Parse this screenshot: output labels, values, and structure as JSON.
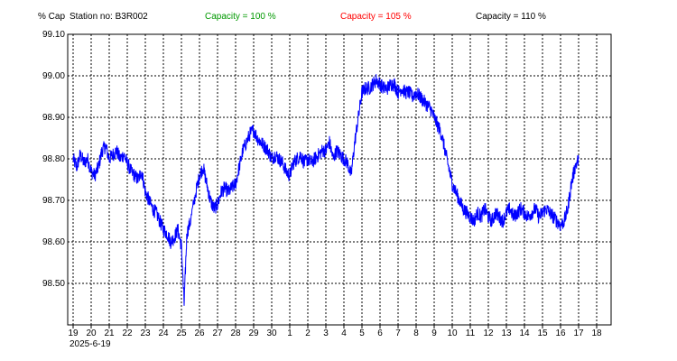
{
  "header": {
    "ylabel": "% Cap",
    "station": "Station no: B3R002",
    "legend": [
      {
        "label": "Capacity = 100 %",
        "color": "#009900"
      },
      {
        "label": "Capacity = 105 %",
        "color": "#ff0000"
      },
      {
        "label": "Capacity = 110 %",
        "color": "#000000"
      }
    ]
  },
  "chart_data": {
    "type": "line",
    "title": "",
    "ylabel": "% Cap",
    "xlabel": "",
    "ylim": [
      98.4,
      99.1
    ],
    "yticks": [
      "99.10",
      "99.00",
      "98.90",
      "98.80",
      "98.70",
      "98.60",
      "98.50"
    ],
    "ytick_values": [
      99.1,
      99.0,
      98.9,
      98.8,
      98.7,
      98.6,
      98.5
    ],
    "xticks": [
      "19",
      "20",
      "21",
      "22",
      "23",
      "24",
      "25",
      "26",
      "27",
      "28",
      "29",
      "30",
      "1",
      "2",
      "3",
      "4",
      "5",
      "6",
      "7",
      "8",
      "9",
      "10",
      "11",
      "12",
      "13",
      "14",
      "15",
      "16",
      "17",
      "18"
    ],
    "start_date": "2025-6-19",
    "grid": true,
    "line_color": "#0000ff",
    "series": [
      {
        "values": [
          [
            0,
            98.8
          ],
          [
            0.2,
            98.78
          ],
          [
            0.4,
            98.81
          ],
          [
            0.6,
            98.79
          ],
          [
            0.8,
            98.8
          ],
          [
            1.0,
            98.77
          ],
          [
            1.2,
            98.76
          ],
          [
            1.4,
            98.78
          ],
          [
            1.6,
            98.82
          ],
          [
            1.8,
            98.83
          ],
          [
            2.0,
            98.8
          ],
          [
            2.2,
            98.81
          ],
          [
            2.4,
            98.82
          ],
          [
            2.6,
            98.8
          ],
          [
            2.8,
            98.81
          ],
          [
            3.0,
            98.79
          ],
          [
            3.2,
            98.77
          ],
          [
            3.4,
            98.76
          ],
          [
            3.6,
            98.75
          ],
          [
            3.8,
            98.77
          ],
          [
            4.0,
            98.72
          ],
          [
            4.2,
            98.7
          ],
          [
            4.4,
            98.68
          ],
          [
            4.6,
            98.67
          ],
          [
            4.8,
            98.65
          ],
          [
            5.0,
            98.63
          ],
          [
            5.2,
            98.62
          ],
          [
            5.4,
            98.6
          ],
          [
            5.6,
            98.61
          ],
          [
            5.8,
            98.63
          ],
          [
            6.0,
            98.59
          ],
          [
            6.15,
            98.45
          ],
          [
            6.3,
            98.62
          ],
          [
            6.5,
            98.65
          ],
          [
            6.8,
            98.72
          ],
          [
            7.0,
            98.76
          ],
          [
            7.2,
            98.78
          ],
          [
            7.4,
            98.74
          ],
          [
            7.6,
            98.7
          ],
          [
            7.8,
            98.68
          ],
          [
            8.0,
            98.69
          ],
          [
            8.2,
            98.72
          ],
          [
            8.4,
            98.73
          ],
          [
            8.6,
            98.72
          ],
          [
            8.8,
            98.73
          ],
          [
            9.0,
            98.74
          ],
          [
            9.2,
            98.78
          ],
          [
            9.4,
            98.82
          ],
          [
            9.6,
            98.84
          ],
          [
            9.8,
            98.86
          ],
          [
            10.0,
            98.87
          ],
          [
            10.2,
            98.85
          ],
          [
            10.4,
            98.84
          ],
          [
            10.6,
            98.83
          ],
          [
            10.8,
            98.82
          ],
          [
            11.0,
            98.8
          ],
          [
            11.2,
            98.81
          ],
          [
            11.4,
            98.8
          ],
          [
            11.6,
            98.79
          ],
          [
            11.8,
            98.77
          ],
          [
            12.0,
            98.76
          ],
          [
            12.2,
            98.79
          ],
          [
            12.4,
            98.8
          ],
          [
            12.6,
            98.81
          ],
          [
            12.8,
            98.79
          ],
          [
            13.0,
            98.8
          ],
          [
            13.2,
            98.79
          ],
          [
            13.4,
            98.8
          ],
          [
            13.6,
            98.81
          ],
          [
            13.8,
            98.82
          ],
          [
            14.0,
            98.82
          ],
          [
            14.2,
            98.84
          ],
          [
            14.4,
            98.8
          ],
          [
            14.6,
            98.82
          ],
          [
            14.8,
            98.81
          ],
          [
            15.0,
            98.8
          ],
          [
            15.2,
            98.79
          ],
          [
            15.4,
            98.76
          ],
          [
            15.6,
            98.84
          ],
          [
            15.8,
            98.9
          ],
          [
            16.0,
            98.96
          ],
          [
            16.2,
            98.97
          ],
          [
            16.4,
            98.97
          ],
          [
            16.6,
            98.98
          ],
          [
            16.8,
            98.99
          ],
          [
            17.0,
            98.98
          ],
          [
            17.2,
            98.97
          ],
          [
            17.4,
            98.97
          ],
          [
            17.6,
            98.98
          ],
          [
            17.8,
            98.98
          ],
          [
            18.0,
            98.96
          ],
          [
            18.2,
            98.97
          ],
          [
            18.4,
            98.96
          ],
          [
            18.6,
            98.96
          ],
          [
            18.8,
            98.95
          ],
          [
            19.0,
            98.96
          ],
          [
            19.2,
            98.95
          ],
          [
            19.4,
            98.94
          ],
          [
            19.6,
            98.93
          ],
          [
            19.8,
            98.92
          ],
          [
            20.0,
            98.9
          ],
          [
            20.2,
            98.88
          ],
          [
            20.4,
            98.86
          ],
          [
            20.6,
            98.82
          ],
          [
            20.8,
            98.78
          ],
          [
            21.0,
            98.74
          ],
          [
            21.2,
            98.72
          ],
          [
            21.4,
            98.7
          ],
          [
            21.6,
            98.68
          ],
          [
            21.8,
            98.67
          ],
          [
            22.0,
            98.66
          ],
          [
            22.2,
            98.65
          ],
          [
            22.4,
            98.67
          ],
          [
            22.6,
            98.66
          ],
          [
            22.8,
            98.68
          ],
          [
            23.0,
            98.66
          ],
          [
            23.2,
            98.65
          ],
          [
            23.4,
            98.67
          ],
          [
            23.6,
            98.66
          ],
          [
            23.8,
            98.65
          ],
          [
            24.0,
            98.67
          ],
          [
            24.2,
            98.68
          ],
          [
            24.4,
            98.66
          ],
          [
            24.6,
            98.67
          ],
          [
            24.8,
            98.68
          ],
          [
            25.0,
            98.67
          ],
          [
            25.2,
            98.66
          ],
          [
            25.4,
            98.67
          ],
          [
            25.6,
            98.68
          ],
          [
            25.8,
            98.66
          ],
          [
            26.0,
            98.67
          ],
          [
            26.2,
            98.68
          ],
          [
            26.4,
            98.67
          ],
          [
            26.6,
            98.66
          ],
          [
            26.8,
            98.65
          ],
          [
            27.0,
            98.64
          ],
          [
            27.2,
            98.65
          ],
          [
            27.4,
            98.68
          ],
          [
            27.6,
            98.74
          ],
          [
            27.8,
            98.78
          ],
          [
            28.0,
            98.8
          ]
        ]
      }
    ]
  }
}
